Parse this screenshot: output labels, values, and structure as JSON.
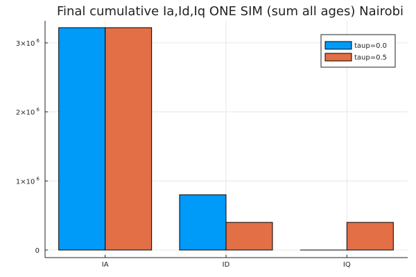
{
  "chart_data": {
    "type": "bar",
    "title": "Final cumulative Ia,Id,Iq ONE SIM (sum all ages) Nairobi",
    "xlabel": "",
    "ylabel": "",
    "categories": [
      "IA",
      "ID",
      "IQ"
    ],
    "series": [
      {
        "name": "taup=0.0",
        "color": "#009AF9",
        "values": [
          3220000,
          800000,
          0
        ]
      },
      {
        "name": "taup=0.5",
        "color": "#E26F46",
        "values": [
          3220000,
          400000,
          400000
        ]
      }
    ],
    "ylim": [
      -110000,
      3320000
    ],
    "yticks": [
      {
        "value": 0,
        "label": "0"
      },
      {
        "value": 1000000,
        "label": "1×10",
        "exp": "6"
      },
      {
        "value": 2000000,
        "label": "2×10",
        "exp": "6"
      },
      {
        "value": 3000000,
        "label": "3×10",
        "exp": "6"
      }
    ],
    "grid": true,
    "legend_position": "top-right"
  }
}
